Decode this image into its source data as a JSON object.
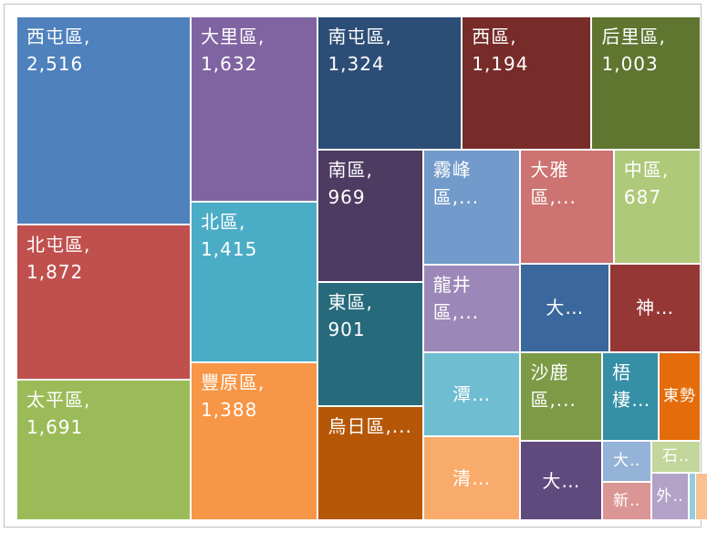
{
  "chart_data": {
    "type": "treemap",
    "categories": [
      "西屯區,",
      "北屯區,",
      "太平區,",
      "大里區,",
      "北區,",
      "豐原區,",
      "南屯區,",
      "西區,",
      "后里區,",
      "南區,",
      "東區,",
      "烏日區,...",
      "霧峰區,...",
      "龍井區,...",
      "潭…",
      "清…",
      "大雅區,...",
      "中區,",
      "大…",
      "神…",
      "沙鹿區,...",
      "大…",
      "梧棲…",
      "東勢",
      "大‥",
      "新‥",
      "石‥",
      "外‥",
      null,
      null
    ],
    "values": [
      2516,
      1872,
      1691,
      1632,
      1415,
      1388,
      1324,
      1194,
      1003,
      969,
      901,
      830,
      780,
      590,
      565,
      565,
      740,
      687,
      545,
      555,
      505,
      450,
      346,
      257,
      140,
      131,
      109,
      123,
      22,
      17
    ],
    "value_labels": [
      "2,516",
      "1,872",
      "1,691",
      "1,632",
      "1,415",
      "1,388",
      "1,324",
      "1,194",
      "1,003",
      "969",
      "901",
      null,
      null,
      null,
      null,
      null,
      null,
      "687",
      null,
      null,
      null,
      null,
      null,
      null,
      null,
      null,
      null,
      null,
      null,
      null
    ],
    "colors": [
      "#4f81bd",
      "#c0504d",
      "#9bbb59",
      "#8064a2",
      "#4bacc6",
      "#f79646",
      "#2c4d75",
      "#772c2a",
      "#5f7530",
      "#4d3b62",
      "#276a7c",
      "#b65708",
      "#729aca",
      "#9c88b8",
      "#6fbdd1",
      "#f9ab6b",
      "#cd7371",
      "#afc97a",
      "#3a679c",
      "#953735",
      "#7d9a46",
      "#5f4a7d",
      "#358fa6",
      "#e46c0a",
      "#95b3d7",
      "#d99694",
      "#c3d69b",
      "#b3a2c7",
      "#93cddd",
      "#fac090"
    ]
  }
}
